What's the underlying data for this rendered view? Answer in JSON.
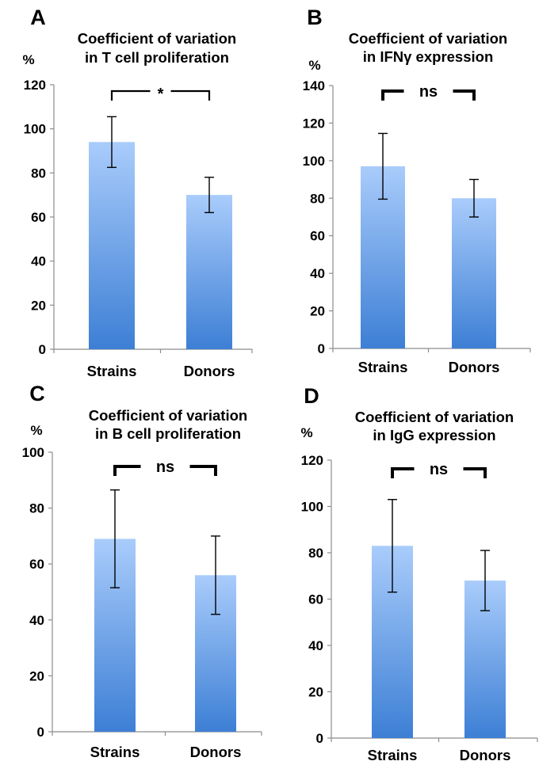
{
  "chart_data": [
    {
      "panel": "A",
      "type": "bar",
      "title_lines": [
        "Coefficient of variation",
        "in T cell proliferation"
      ],
      "ylabel": "%",
      "categories": [
        "Strains",
        "Donors"
      ],
      "values": [
        94,
        70
      ],
      "errors": [
        11.5,
        8
      ],
      "ylim": [
        0,
        120
      ],
      "yticks": [
        0,
        20,
        40,
        60,
        80,
        100,
        120
      ],
      "significance": "*"
    },
    {
      "panel": "B",
      "type": "bar",
      "title_lines": [
        "Coefficient of variation",
        "in IFNγ expression"
      ],
      "ylabel": "%",
      "categories": [
        "Strains",
        "Donors"
      ],
      "values": [
        97,
        80
      ],
      "errors": [
        17.5,
        10
      ],
      "ylim": [
        0,
        140
      ],
      "yticks": [
        0,
        20,
        40,
        60,
        80,
        100,
        120,
        140
      ],
      "significance": "ns"
    },
    {
      "panel": "C",
      "type": "bar",
      "title_lines": [
        "Coefficient of variation",
        "in B cell proliferation"
      ],
      "ylabel": "%",
      "categories": [
        "Strains",
        "Donors"
      ],
      "values": [
        69,
        56
      ],
      "errors": [
        17.5,
        14
      ],
      "ylim": [
        0,
        100
      ],
      "yticks": [
        0,
        20,
        40,
        60,
        80,
        100
      ],
      "significance": "ns"
    },
    {
      "panel": "D",
      "type": "bar",
      "title_lines": [
        "Coefficient of variation",
        "in IgG expression"
      ],
      "ylabel": "%",
      "categories": [
        "Strains",
        "Donors"
      ],
      "values": [
        83,
        68
      ],
      "errors": [
        20,
        13
      ],
      "ylim": [
        0,
        120
      ],
      "yticks": [
        0,
        20,
        40,
        60,
        80,
        100,
        120
      ],
      "significance": "ns"
    }
  ],
  "colors": {
    "bar_top": "#a9ccfb",
    "bar_bottom": "#3d7fd5",
    "axis": "#8c8c8c",
    "ink": "#000000"
  }
}
